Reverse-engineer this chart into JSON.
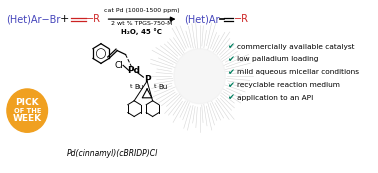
{
  "bg_color": "#ffffff",
  "blue_color": "#4444bb",
  "red_color": "#cc2222",
  "dark_green": "#008060",
  "teal_green": "#008060",
  "orange_badge": "#f0a020",
  "badge_lines": [
    "PICK",
    "OF THE",
    "WEEK"
  ],
  "cat_label1": "cat Pd (1000-1500 ppm)",
  "cat_label2": "2 wt % TPGS-750-M",
  "cat_label3": "H₂O, 45 °C",
  "compound_label": "Pd(cinnamyl)(cBRIDP)Cl",
  "checkmarks": [
    "commercially available catalyst",
    "low palladium loading",
    "mild aqueous micellar conditions",
    "recyclable reaction medium",
    "application to an API"
  ],
  "figsize": [
    3.78,
    1.73
  ],
  "dpi": 100
}
